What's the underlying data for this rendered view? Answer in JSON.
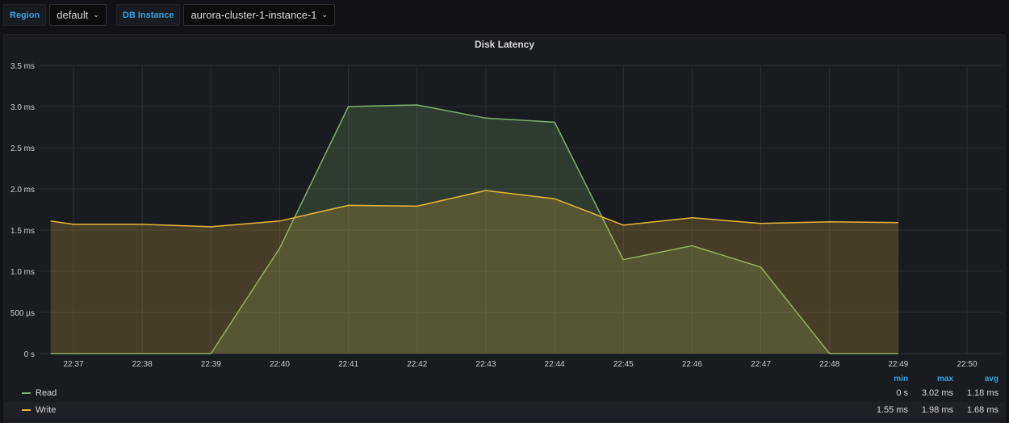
{
  "variables": [
    {
      "label": "Region",
      "value": "default"
    },
    {
      "label": "DB Instance",
      "value": "aurora-cluster-1-instance-1"
    }
  ],
  "panel": {
    "title": "Disk Latency"
  },
  "legend": {
    "columns": [
      "min",
      "max",
      "avg"
    ],
    "series": [
      {
        "name": "Read",
        "min": "0 s",
        "max": "3.02 ms",
        "avg": "1.18 ms",
        "color": "#7eb26d"
      },
      {
        "name": "Write",
        "min": "1.55 ms",
        "max": "1.98 ms",
        "avg": "1.68 ms",
        "color": "#eab839"
      }
    ]
  },
  "chart_data": {
    "type": "area",
    "title": "Disk Latency",
    "x": [
      "22:36:40",
      "22:37",
      "22:38",
      "22:39",
      "22:40",
      "22:41",
      "22:42",
      "22:43",
      "22:44",
      "22:45",
      "22:46",
      "22:47",
      "22:48",
      "22:49"
    ],
    "x_ticks": [
      "22:37",
      "22:38",
      "22:39",
      "22:40",
      "22:41",
      "22:42",
      "22:43",
      "22:44",
      "22:45",
      "22:46",
      "22:47",
      "22:48",
      "22:49",
      "22:50"
    ],
    "y_ticks": [
      {
        "value": 0,
        "label": "0 s"
      },
      {
        "value": 0.5,
        "label": "500 µs"
      },
      {
        "value": 1.0,
        "label": "1.0 ms"
      },
      {
        "value": 1.5,
        "label": "1.5 ms"
      },
      {
        "value": 2.0,
        "label": "2.0 ms"
      },
      {
        "value": 2.5,
        "label": "2.5 ms"
      },
      {
        "value": 3.0,
        "label": "3.0 ms"
      },
      {
        "value": 3.5,
        "label": "3.5 ms"
      }
    ],
    "ylim": [
      0,
      3.5
    ],
    "y_unit": "ms",
    "grid": true,
    "legend_position": "bottom",
    "series": [
      {
        "name": "Read",
        "color": "#7eb26d",
        "values": [
          0,
          0,
          0,
          0,
          1.28,
          3.0,
          3.02,
          2.86,
          2.81,
          1.14,
          1.31,
          1.05,
          0,
          0
        ]
      },
      {
        "name": "Write",
        "color": "#eab839",
        "values": [
          1.61,
          1.57,
          1.57,
          1.54,
          1.61,
          1.8,
          1.79,
          1.98,
          1.88,
          1.56,
          1.65,
          1.58,
          1.6,
          1.59
        ]
      }
    ]
  }
}
